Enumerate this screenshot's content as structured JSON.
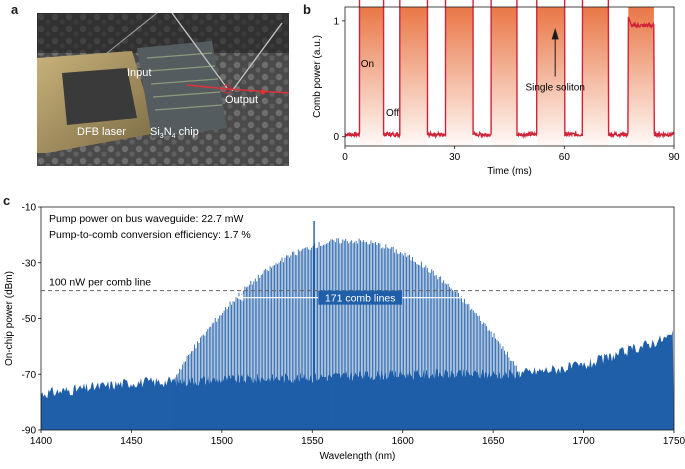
{
  "figure": {
    "panel_a": {
      "letter": "a",
      "labels": {
        "input": "Input",
        "output": "Output",
        "laser": "DFB laser",
        "chip_prefix": "Si",
        "chip_sub1": "3",
        "chip_mid": "N",
        "chip_sub2": "4",
        "chip_suffix": " chip"
      }
    },
    "panel_b": {
      "letter": "b",
      "annotations": {
        "on": "On",
        "off": "Off",
        "soliton": "Single soliton"
      }
    },
    "panel_c": {
      "letter": "c",
      "info_line1": "Pump power on bus waveguide: 22.7 mW",
      "info_line2": "Pump-to-comb conversion efficiency: 1.7 %",
      "threshold_label": "100 nW per comb line",
      "span_label": "171 comb lines"
    }
  },
  "colors": {
    "trace_b": "#d0243a",
    "shade_b": "#e8703c",
    "spectrum_c": "#1f5ea8",
    "photo_dark": "#2b2b2b"
  },
  "chart_data": [
    {
      "type": "line",
      "title": "",
      "xlabel": "Time (ms)",
      "ylabel": "Comb power (a.u.)",
      "xlim": [
        0,
        90
      ],
      "ylim": [
        -0.08,
        1.12
      ],
      "xticks": [
        0,
        30,
        60,
        90
      ],
      "yticks": [
        0,
        1
      ],
      "on_intervals": [
        [
          4,
          10.5
        ],
        [
          15,
          22.5
        ],
        [
          27.5,
          35
        ],
        [
          40,
          47
        ],
        [
          52.5,
          60
        ],
        [
          65,
          72
        ],
        [
          77.5,
          84.5
        ]
      ],
      "on_level": 0.96,
      "off_level": 0.02
    },
    {
      "type": "line",
      "title": "",
      "xlabel": "Wavelength (nm)",
      "ylabel": "On-chip power (dBm)",
      "xlim": [
        1400,
        1750
      ],
      "ylim": [
        -90,
        -10
      ],
      "xticks": [
        1400,
        1450,
        1500,
        1550,
        1600,
        1650,
        1700,
        1750
      ],
      "yticks": [
        -90,
        -70,
        -50,
        -30,
        -10
      ],
      "threshold_dbm": -40,
      "comb_span_nm": [
        1508,
        1645
      ],
      "pump_wavelength_nm": 1551,
      "pump_power_dbm": -15,
      "envelope_peak_nm": 1570,
      "envelope_peak_dbm": -22,
      "noise_floor": [
        [
          1400,
          -77
        ],
        [
          1450,
          -73
        ],
        [
          1500,
          -72
        ],
        [
          1600,
          -70
        ],
        [
          1660,
          -70
        ],
        [
          1700,
          -67
        ],
        [
          1750,
          -56
        ]
      ]
    }
  ]
}
